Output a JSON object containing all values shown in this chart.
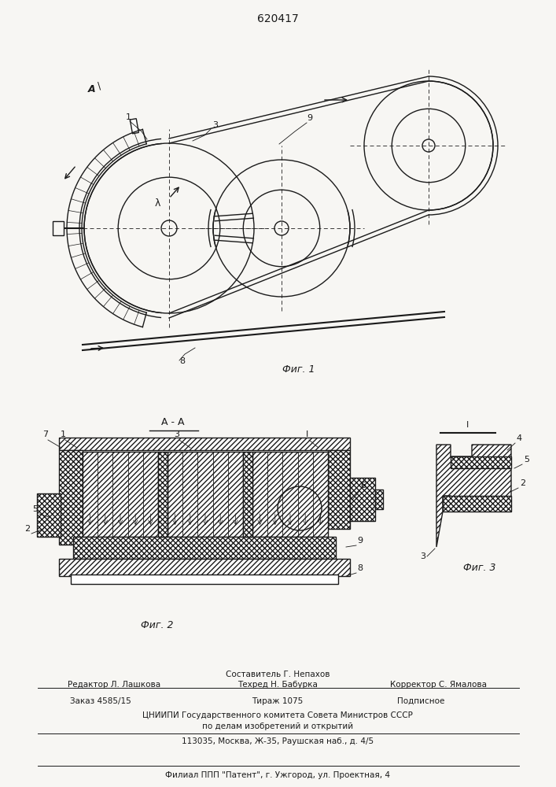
{
  "title": "620417",
  "background_color": "#f7f6f3",
  "fig1_caption": "Фиг. 1",
  "fig2_caption": "Фиг. 2",
  "fig3_caption": "Фиг. 3",
  "section_label": "А - А",
  "footer_lines": [
    "Составитель Г. Непахов",
    "Редактор Л. Лашкова",
    "Техред Н. Бабурка",
    "Корректор С. Ямалова",
    "Заказ 4585/15",
    "Тираж 1075",
    "Подписное",
    "ЦНИИПИ Государственного комитета Совета Министров СССР",
    "по делам изобретений и открытий",
    "113035, Москва, Ж-35, Раушская наб., д. 4/5",
    "Филиал ППП \"Патент\", г. Ужгород, ул. Проектная, 4"
  ],
  "line_color": "#1a1a1a",
  "text_color": "#1a1a1a"
}
